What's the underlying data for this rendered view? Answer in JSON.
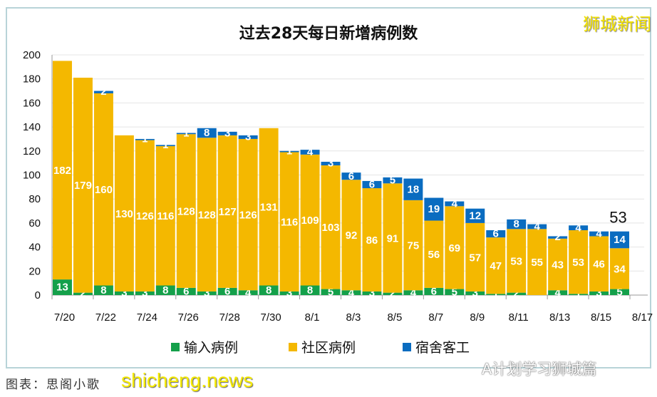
{
  "watermark_top": "狮城新闻",
  "credit": "图表：思阁小歌",
  "watermark_bottom": "shicheng.news",
  "wechat_watermark": "A计划学习狮城篇",
  "chart_data": {
    "type": "bar",
    "stacked": true,
    "title": "过去28天每日新增病例数",
    "categories": [
      "7/20",
      "7/21",
      "7/22",
      "7/23",
      "7/24",
      "7/25",
      "7/26",
      "7/27",
      "7/28",
      "7/29",
      "7/30",
      "7/31",
      "8/1",
      "8/2",
      "8/3",
      "8/4",
      "8/5",
      "8/6",
      "8/7",
      "8/8",
      "8/9",
      "8/10",
      "8/11",
      "8/12",
      "8/13",
      "8/14",
      "8/15",
      "8/16"
    ],
    "xtick_labels": [
      "7/20",
      "7/22",
      "7/24",
      "7/26",
      "7/28",
      "7/30",
      "8/1",
      "8/3",
      "8/5",
      "8/7",
      "8/9",
      "8/11",
      "8/13",
      "8/15",
      "8/17"
    ],
    "ylim": [
      0,
      200
    ],
    "yticks": [
      0,
      20,
      40,
      60,
      80,
      100,
      120,
      140,
      160,
      180,
      200
    ],
    "grid": true,
    "legend_position": "bottom",
    "series": [
      {
        "name": "输入病例",
        "color": "#14a04a",
        "values": [
          13,
          2,
          8,
          3,
          3,
          8,
          6,
          3,
          6,
          4,
          8,
          3,
          8,
          5,
          4,
          3,
          2,
          4,
          6,
          5,
          3,
          1,
          2,
          0,
          4,
          1,
          3,
          5
        ]
      },
      {
        "name": "社区病例",
        "color": "#f4b800",
        "values": [
          182,
          179,
          160,
          130,
          126,
          116,
          128,
          128,
          127,
          126,
          131,
          116,
          109,
          103,
          92,
          86,
          91,
          75,
          56,
          69,
          57,
          47,
          53,
          55,
          43,
          53,
          46,
          34
        ]
      },
      {
        "name": "宿舍客工",
        "color": "#0a6cc0",
        "values": [
          0,
          0,
          2,
          0,
          1,
          1,
          1,
          8,
          3,
          3,
          0,
          1,
          4,
          3,
          6,
          6,
          5,
          18,
          19,
          4,
          12,
          6,
          8,
          4,
          2,
          4,
          4,
          14
        ]
      }
    ],
    "annotations": [
      {
        "category": "8/16",
        "text": "53"
      }
    ]
  }
}
